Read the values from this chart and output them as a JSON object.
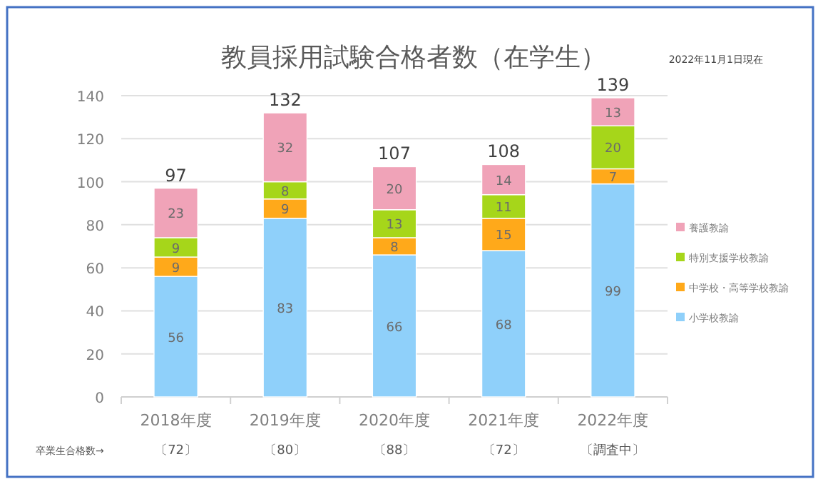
{
  "chart_data": {
    "type": "bar",
    "title": "教員採用試験合格者数（在学生）",
    "categories": [
      "2018年度",
      "2019年度",
      "2020年度",
      "2021年度",
      "2022年度"
    ],
    "stacked": true,
    "series": [
      {
        "name": "小学校教諭",
        "color": "#8fd0fa",
        "values": [
          56,
          83,
          66,
          68,
          99
        ]
      },
      {
        "name": "中学校・高等学校教諭",
        "color": "#ffa91a",
        "values": [
          9,
          9,
          8,
          15,
          7
        ]
      },
      {
        "name": "特別支援学校教諭",
        "color": "#a6d61a",
        "values": [
          9,
          8,
          13,
          11,
          20
        ]
      },
      {
        "name": "養護教諭",
        "color": "#f0a3b8",
        "values": [
          23,
          32,
          20,
          14,
          13
        ]
      }
    ],
    "totals": [
      "97",
      "132",
      "107",
      "108",
      "139"
    ],
    "data_labels": true,
    "ylim": [
      0,
      140
    ],
    "yticks": [
      0,
      20,
      40,
      60,
      80,
      100,
      120,
      140
    ],
    "grid": "y",
    "legend": "right",
    "annotations": [
      "2022年11月1日現在",
      "卒業生合格数→",
      "〔72〕",
      "〔80〕",
      "〔88〕",
      "〔72〕",
      "〔調査中〕"
    ]
  }
}
